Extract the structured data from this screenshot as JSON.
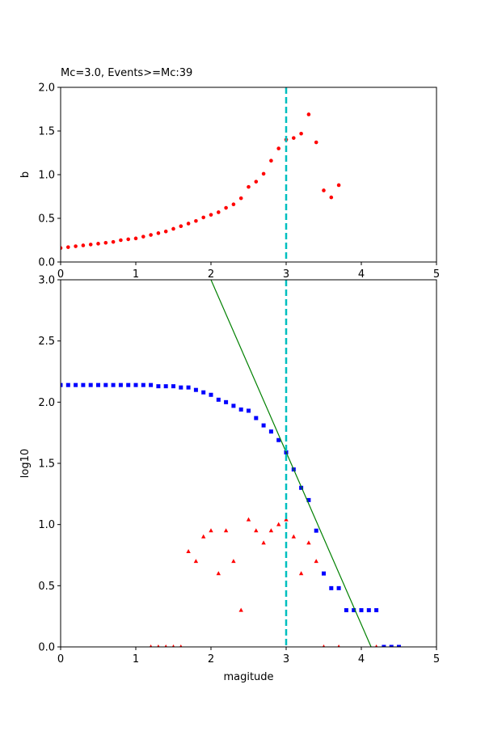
{
  "chart_data": [
    {
      "type": "scatter",
      "title": "Mc=3.0, Events>=Mc:39",
      "ylabel": "b",
      "xlim": [
        0,
        5
      ],
      "xticks": [
        0,
        1,
        2,
        3,
        4,
        5
      ],
      "ylim": [
        0,
        2
      ],
      "yticks": [
        {
          "value": 0,
          "label": "0.0"
        },
        0.5,
        {
          "value": 1,
          "label": "1.0"
        },
        1.5,
        {
          "value": 2,
          "label": "2.0"
        }
      ],
      "vline": 3,
      "vline_color": "#00bfbf",
      "series": [
        {
          "marker": "circle",
          "color": "#ff0000",
          "x": [
            0,
            0.1,
            0.2,
            0.3,
            0.4,
            0.5,
            0.6,
            0.7,
            0.8,
            0.9,
            1.0,
            1.1,
            1.2,
            1.3,
            1.4,
            1.5,
            1.6,
            1.7,
            1.8,
            1.9,
            2.0,
            2.1,
            2.2,
            2.3,
            2.4,
            2.5,
            2.6,
            2.7,
            2.8,
            2.9,
            3.0,
            3.1,
            3.2,
            3.3,
            3.4,
            3.5,
            3.6,
            3.7
          ],
          "values": [
            0.16,
            0.17,
            0.18,
            0.19,
            0.2,
            0.21,
            0.22,
            0.23,
            0.25,
            0.26,
            0.27,
            0.29,
            0.31,
            0.33,
            0.35,
            0.38,
            0.41,
            0.44,
            0.47,
            0.51,
            0.54,
            0.57,
            0.62,
            0.66,
            0.73,
            0.86,
            0.92,
            1.01,
            1.16,
            1.3,
            1.4,
            1.42,
            1.47,
            1.69,
            1.37,
            0.82,
            0.74,
            0.88
          ]
        }
      ]
    },
    {
      "type": "scatter",
      "xlabel": "magitude",
      "ylabel": "log10",
      "xlim": [
        0,
        5
      ],
      "xticks": [
        0,
        1,
        2,
        3,
        4,
        5
      ],
      "ylim": [
        0,
        3
      ],
      "yticks": [
        {
          "value": 0,
          "label": "0.0"
        },
        0.5,
        {
          "value": 1,
          "label": "1.0"
        },
        1.5,
        {
          "value": 2,
          "label": "2.0"
        },
        2.5,
        {
          "value": 3,
          "label": "3.0"
        }
      ],
      "vline": 3,
      "vline_color": "#00bfbf",
      "series": [
        {
          "marker": "square",
          "color": "#0000ff",
          "x": [
            0,
            0.1,
            0.2,
            0.3,
            0.4,
            0.5,
            0.6,
            0.7,
            0.8,
            0.9,
            1.0,
            1.1,
            1.2,
            1.3,
            1.4,
            1.5,
            1.6,
            1.7,
            1.8,
            1.9,
            2.0,
            2.1,
            2.2,
            2.3,
            2.4,
            2.5,
            2.6,
            2.7,
            2.8,
            2.9,
            3.0,
            3.1,
            3.2,
            3.3,
            3.4,
            3.5,
            3.6,
            3.7,
            3.8,
            3.9,
            4.0,
            4.1,
            4.2,
            4.3,
            4.4,
            4.5
          ],
          "values": [
            2.14,
            2.14,
            2.14,
            2.14,
            2.14,
            2.14,
            2.14,
            2.14,
            2.14,
            2.14,
            2.14,
            2.14,
            2.14,
            2.13,
            2.13,
            2.13,
            2.12,
            2.12,
            2.1,
            2.08,
            2.06,
            2.02,
            2.0,
            1.97,
            1.94,
            1.93,
            1.87,
            1.81,
            1.76,
            1.69,
            1.59,
            1.45,
            1.3,
            1.2,
            0.95,
            0.6,
            0.48,
            0.48,
            0.3,
            0.3,
            0.3,
            0.3,
            0.3,
            0,
            0,
            0
          ]
        },
        {
          "marker": "triangle",
          "color": "#ff0000",
          "x": [
            1.2,
            1.3,
            1.4,
            1.5,
            1.6,
            1.7,
            1.8,
            1.9,
            2.0,
            2.1,
            2.2,
            2.3,
            2.4,
            2.5,
            2.6,
            2.7,
            2.8,
            2.9,
            3.0,
            3.1,
            3.2,
            3.3,
            3.4,
            3.5,
            3.7,
            4.2
          ],
          "values": [
            0,
            0,
            0,
            0,
            0,
            0.78,
            0.7,
            0.9,
            0.95,
            0.6,
            0.95,
            0.7,
            0.3,
            1.04,
            0.95,
            0.85,
            0.95,
            1.0,
            1.04,
            0.9,
            0.6,
            0.85,
            0.7,
            0,
            0,
            0
          ]
        },
        {
          "marker": "line",
          "color": "#008000",
          "x": [
            2.0,
            4.13
          ],
          "values": [
            3.0,
            0
          ]
        }
      ]
    }
  ]
}
